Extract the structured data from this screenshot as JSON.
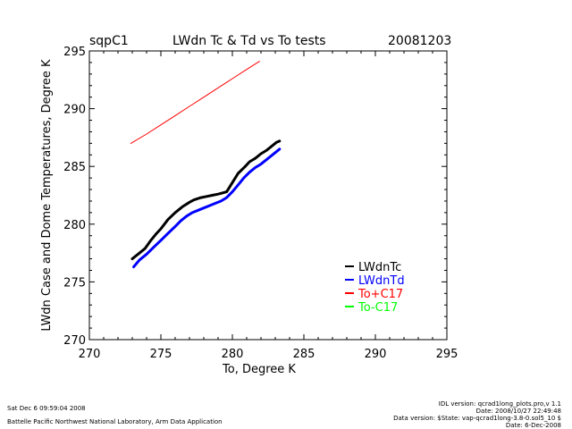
{
  "chart_data": {
    "type": "line",
    "title": "LWdn Tc & Td vs To tests",
    "site": "sqpC1",
    "date": "20081203",
    "xlabel": "To, Degree K",
    "ylabel": "LWdn Case and Dome Temperatures, Degree K",
    "xlim": [
      270,
      295
    ],
    "ylim": [
      270,
      295
    ],
    "xticks": [
      "270",
      "275",
      "280",
      "285",
      "290",
      "295"
    ],
    "yticks": [
      "270",
      "275",
      "280",
      "285",
      "290",
      "295"
    ],
    "grid": false,
    "legend_position": "bottom-right",
    "series": [
      {
        "name": "LWdnTc",
        "color": "#000000",
        "x": [
          273.0,
          273.4,
          273.9,
          274.3,
          274.7,
          275.0,
          275.5,
          276.0,
          276.5,
          277.0,
          277.3,
          277.8,
          278.2,
          278.6,
          279.0,
          279.3,
          279.6,
          280.0,
          280.4,
          280.9,
          281.2,
          281.6,
          282.0,
          282.4,
          282.8,
          283.1,
          283.3
        ],
        "y": [
          277.0,
          277.4,
          277.9,
          278.6,
          279.2,
          279.6,
          280.4,
          281.0,
          281.5,
          281.9,
          282.1,
          282.3,
          282.4,
          282.5,
          282.6,
          282.7,
          282.8,
          283.6,
          284.4,
          285.0,
          285.4,
          285.7,
          286.1,
          286.4,
          286.8,
          287.1,
          287.2
        ]
      },
      {
        "name": "LWdnTd",
        "color": "#0000ff",
        "x": [
          273.1,
          273.5,
          274.0,
          274.5,
          275.0,
          275.5,
          276.0,
          276.4,
          276.8,
          277.2,
          277.6,
          278.0,
          278.4,
          278.8,
          279.2,
          279.6,
          280.0,
          280.4,
          280.8,
          281.2,
          281.6,
          282.0,
          282.4,
          282.8,
          283.1,
          283.3
        ],
        "y": [
          276.3,
          276.9,
          277.4,
          278.0,
          278.6,
          279.2,
          279.8,
          280.3,
          280.7,
          281.0,
          281.2,
          281.4,
          281.6,
          281.8,
          282.0,
          282.3,
          282.8,
          283.4,
          284.0,
          284.5,
          284.9,
          285.2,
          285.6,
          286.0,
          286.3,
          286.5
        ]
      },
      {
        "name": "To+C17",
        "color": "#ff0000",
        "x": [
          272.9,
          274.0,
          275.0,
          276.0,
          277.0,
          278.0,
          279.0,
          280.0,
          281.0,
          281.9
        ],
        "y": [
          287.0,
          287.8,
          288.6,
          289.4,
          290.2,
          291.0,
          291.8,
          292.6,
          293.4,
          294.1
        ]
      },
      {
        "name": "To-C17",
        "color": "#00ff00",
        "x": [],
        "y": []
      }
    ]
  },
  "footer": {
    "timestamp": "Sat Dec  6 09:59:04 2008",
    "institution": "Battelle Pacific Northwest National Laboratory, Arm Data Application",
    "idl_version": "IDL version: qcrad1long_plots.pro,v 1.1",
    "file_date": "Date: 2008/10/27 22:49:48",
    "data_version": "Data version: $State: vap-qcrad1long-3.8-0.sol5_10 $",
    "data_date": "Date: 6-Dec-2008"
  }
}
